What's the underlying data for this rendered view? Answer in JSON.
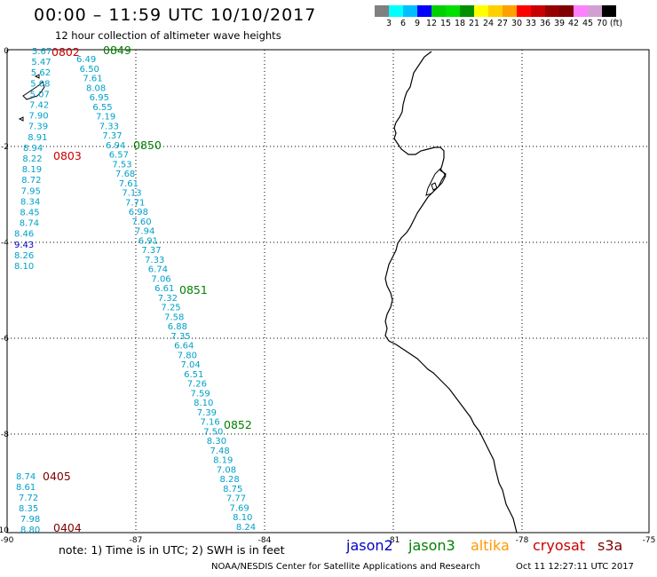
{
  "header": {
    "title": "00:00 – 11:59 UTC 10/10/2017",
    "subtitle": "12 hour collection of altimeter wave heights"
  },
  "colorbar": {
    "colors": [
      "#808080",
      "#00ffff",
      "#00bfff",
      "#0000ff",
      "#00d000",
      "#00e000",
      "#009000",
      "#ffff00",
      "#ffd000",
      "#ffa000",
      "#ff0000",
      "#c80000",
      "#960000",
      "#800000",
      "#ff80ff",
      "#d0a0d0",
      "#000000"
    ],
    "labels": [
      "3",
      "6",
      "9",
      "12",
      "15",
      "18",
      "21",
      "24",
      "27",
      "30",
      "33",
      "36",
      "39",
      "42",
      "45",
      "70"
    ],
    "unit": "(ft)"
  },
  "axes": {
    "x_ticks": [
      "-90",
      "-87",
      "-84",
      "-81",
      "-78",
      "-75"
    ],
    "y_ticks": [
      "0",
      "-2",
      "-4",
      "-6",
      "-8",
      "-10"
    ]
  },
  "satellite_colors": {
    "jason2": "#0000cc",
    "jason3": "#008000",
    "altika": "#ff9900",
    "cryosat": "#cc0000",
    "s3a": "#800000",
    "swh": "#00a0c8"
  },
  "tracks": {
    "left_swh": [
      "5.67",
      "5.47",
      "5.62",
      "5.08",
      "5.07",
      "7.42",
      "7.90",
      "7.39",
      "8.91",
      "8.94",
      "8.22",
      "8.19",
      "8.72",
      "7.95",
      "8.34",
      "8.45",
      "8.74",
      "8.46",
      "9.43",
      "8.26",
      "8.10"
    ],
    "middle_swh": [
      "6.49",
      "6.50",
      "7.61",
      "8.08",
      "6.95",
      "6.55",
      "7.19",
      "7.33",
      "7.37",
      "6.94",
      "6.57",
      "7.53",
      "7.68",
      "7.61",
      "7.13",
      "7.71",
      "6.98",
      "7.60",
      "7.94",
      "6.91",
      "7.37",
      "7.33",
      "6.74",
      "7.06",
      "6.61",
      "7.32",
      "7.25",
      "7.58",
      "6.88",
      "7.35",
      "6.64",
      "7.80",
      "7.04",
      "6.51",
      "7.26",
      "7.59",
      "8.10",
      "7.39",
      "7.16",
      "7.50",
      "8.30",
      "7.48",
      "8.19",
      "7.08",
      "8.28",
      "8.75",
      "7.77",
      "7.69",
      "8.10",
      "8.24"
    ],
    "bottom_left_swh": [
      "8.74",
      "8.61",
      "7.72",
      "8.35",
      "7.98",
      "8.80"
    ],
    "times": {
      "t0802": "0802",
      "t0849": "0849",
      "t0803": "0803",
      "t0850": "0850",
      "t0851": "0851",
      "t0852": "0852",
      "t0405": "0405",
      "t0404": "0404"
    }
  },
  "legend": {
    "jason2": "jason2",
    "jason3": "jason3",
    "altika": "altika",
    "cryosat": "cryosat",
    "s3a": "s3a"
  },
  "footer": {
    "note": "note:  1) Time is in UTC;  2) SWH is in feet",
    "credit": "NOAA/NESDIS Center for Satellite Applications and Research",
    "timestamp": "Oct 11 12:27:11 UTC 2017"
  }
}
